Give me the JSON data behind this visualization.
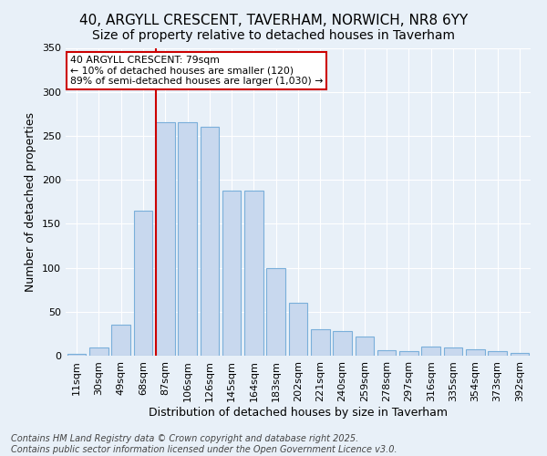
{
  "title": "40, ARGYLL CRESCENT, TAVERHAM, NORWICH, NR8 6YY",
  "subtitle": "Size of property relative to detached houses in Taverham",
  "xlabel": "Distribution of detached houses by size in Taverham",
  "ylabel": "Number of detached properties",
  "categories": [
    "11sqm",
    "30sqm",
    "49sqm",
    "68sqm",
    "87sqm",
    "106sqm",
    "126sqm",
    "145sqm",
    "164sqm",
    "183sqm",
    "202sqm",
    "221sqm",
    "240sqm",
    "259sqm",
    "278sqm",
    "297sqm",
    "316sqm",
    "335sqm",
    "354sqm",
    "373sqm",
    "392sqm"
  ],
  "values": [
    2,
    9,
    35,
    165,
    265,
    265,
    260,
    188,
    188,
    100,
    60,
    30,
    28,
    22,
    6,
    5,
    10,
    9,
    7,
    5,
    3
  ],
  "bar_color": "#c8d8ee",
  "bar_edge_color": "#7aafda",
  "vline_color": "#cc0000",
  "annotation_text": "40 ARGYLL CRESCENT: 79sqm\n← 10% of detached houses are smaller (120)\n89% of semi-detached houses are larger (1,030) →",
  "annotation_box_color": "#cc0000",
  "ylim": [
    0,
    350
  ],
  "yticks": [
    0,
    50,
    100,
    150,
    200,
    250,
    300,
    350
  ],
  "bg_color": "#e8f0f8",
  "footer": "Contains HM Land Registry data © Crown copyright and database right 2025.\nContains public sector information licensed under the Open Government Licence v3.0.",
  "title_fontsize": 11,
  "subtitle_fontsize": 10,
  "axis_label_fontsize": 9,
  "tick_fontsize": 8,
  "footer_fontsize": 7
}
